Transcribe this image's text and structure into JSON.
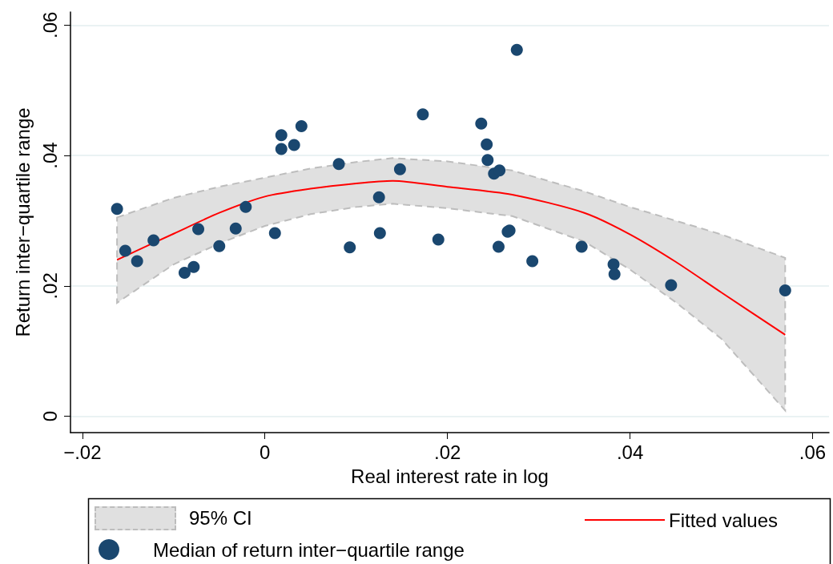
{
  "chart_data": {
    "type": "scatter",
    "xlabel": "Real interest rate in log",
    "ylabel": "Return inter−quartile range",
    "annotations": [
      "95% CI"
    ],
    "xlim": [
      -0.0213,
      0.0618
    ],
    "ylim": [
      -0.0025,
      0.062
    ],
    "xticks": [
      {
        "value": -0.02,
        "label": "−.02"
      },
      0,
      {
        "value": 0.02,
        "label": ".02"
      },
      {
        "value": 0.04,
        "label": ".04"
      },
      {
        "value": 0.06,
        "label": ".06"
      }
    ],
    "yticks": [
      0,
      {
        "value": 0.02,
        "label": ".02"
      },
      {
        "value": 0.04,
        "label": ".04"
      },
      {
        "value": 0.06,
        "label": ".06"
      }
    ],
    "grid": "y",
    "legend": "bottom",
    "marker": "circle",
    "series": [
      {
        "name": "Fitted values",
        "type": "line",
        "color": "#ff0000",
        "marker": "none",
        "line_style": "solid",
        "x": [
          -0.0162,
          -0.01,
          -0.005,
          0,
          0.005,
          0.01,
          0.014,
          0.02,
          0.0271,
          0.035,
          0.04,
          0.045,
          0.05,
          0.057
        ],
        "values": [
          0.024,
          0.028,
          0.0312,
          0.0337,
          0.0349,
          0.0357,
          0.0361,
          0.0352,
          0.034,
          0.0312,
          0.0279,
          0.0237,
          0.019,
          0.0125
        ],
        "lower": [
          0.0174,
          0.0233,
          0.0265,
          0.0292,
          0.031,
          0.0321,
          0.0326,
          0.0319,
          0.0307,
          0.0268,
          0.0225,
          0.0175,
          0.0119,
          0.0009
        ],
        "upper": [
          0.0305,
          0.0335,
          0.0352,
          0.0366,
          0.038,
          0.039,
          0.0396,
          0.0391,
          0.0377,
          0.0345,
          0.0321,
          0.03,
          0.0279,
          0.0243
        ]
      },
      {
        "name": "Median of return inter−quartile range",
        "color": "#1a476f",
        "x": [
          -0.0162,
          -0.0153,
          -0.014,
          -0.0122,
          -0.0088,
          -0.0078,
          -0.0073,
          -0.005,
          -0.0032,
          -0.0021,
          0.0011,
          0.0018,
          0.0018,
          0.0032,
          0.004,
          0.0081,
          0.0093,
          0.0125,
          0.0126,
          0.0148,
          0.0173,
          0.019,
          0.0237,
          0.0243,
          0.0244,
          0.0251,
          0.0257,
          0.0256,
          0.0266,
          0.0268,
          0.0276,
          0.0293,
          0.0347,
          0.0382,
          0.0383,
          0.0445,
          0.057
        ],
        "values": [
          0.0318,
          0.0254,
          0.0238,
          0.027,
          0.022,
          0.0229,
          0.0287,
          0.0261,
          0.0288,
          0.0321,
          0.0281,
          0.041,
          0.0431,
          0.0416,
          0.0445,
          0.0387,
          0.0259,
          0.0336,
          0.0281,
          0.0379,
          0.0463,
          0.0271,
          0.0449,
          0.0417,
          0.0393,
          0.0372,
          0.0377,
          0.026,
          0.0283,
          0.0285,
          0.0562,
          0.0238,
          0.026,
          0.0233,
          0.0218,
          0.0201,
          0.0193
        ]
      }
    ]
  }
}
